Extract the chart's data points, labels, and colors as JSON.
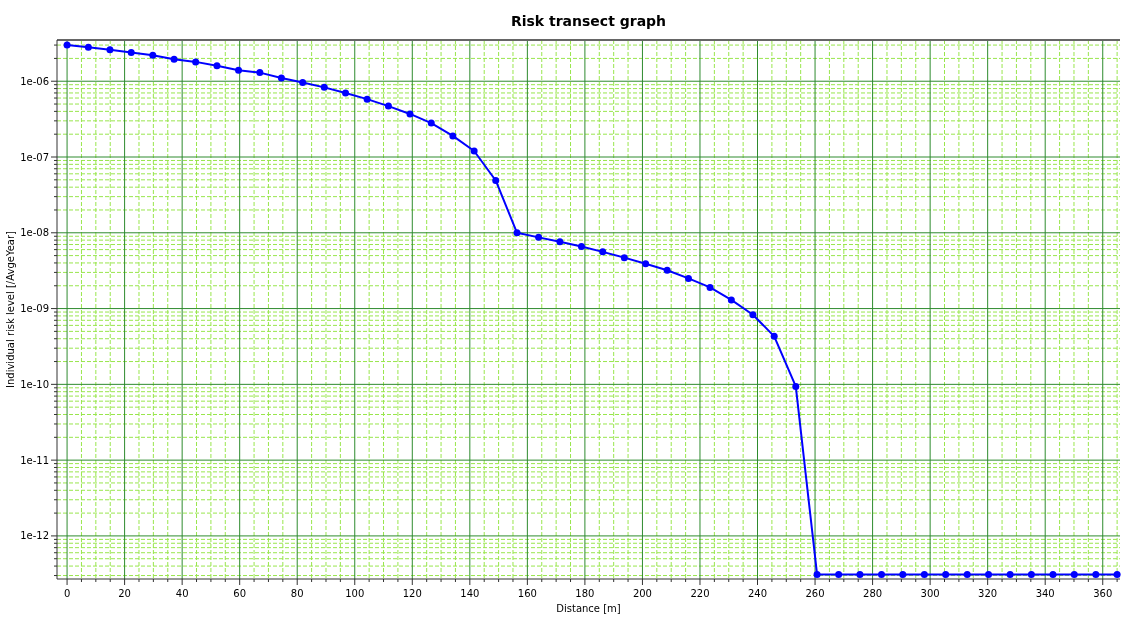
{
  "chart_data": {
    "type": "line",
    "title": "Risk transect graph",
    "xlabel": "Distance [m]",
    "ylabel": "Individual risk level [/AvgeYear]",
    "x": [
      0,
      7.4,
      14.9,
      22.3,
      29.8,
      37.2,
      44.7,
      52.1,
      59.6,
      67,
      74.5,
      81.9,
      89.4,
      96.8,
      104.3,
      111.7,
      119.2,
      126.6,
      134.1,
      141.5,
      149,
      156.4,
      163.9,
      171.3,
      178.8,
      186.2,
      193.7,
      201.1,
      208.6,
      216,
      223.5,
      230.9,
      238.4,
      245.8,
      253.3,
      260.7,
      268.2,
      275.6,
      283.1,
      290.5,
      298,
      305.4,
      312.9,
      320.3,
      327.8,
      335.2,
      342.7,
      350.1,
      357.6,
      365
    ],
    "series": [
      {
        "color": "#0000ff",
        "values": [
          3e-06,
          2.8e-06,
          2.6e-06,
          2.4e-06,
          2.2e-06,
          1.95e-06,
          1.8e-06,
          1.6e-06,
          1.4e-06,
          1.3e-06,
          1.1e-06,
          9.6e-07,
          8.3e-07,
          7e-07,
          5.8e-07,
          4.7e-07,
          3.7e-07,
          2.8e-07,
          1.9e-07,
          1.2e-07,
          4.9e-08,
          1e-08,
          8.7e-09,
          7.6e-09,
          6.6e-09,
          5.6e-09,
          4.7e-09,
          3.9e-09,
          3.2e-09,
          2.5e-09,
          1.9e-09,
          1.3e-09,
          8.3e-10,
          4.3e-10,
          9.4e-11,
          3.1e-13,
          3.1e-13,
          3.1e-13,
          3.1e-13,
          3.1e-13,
          3.1e-13,
          3.1e-13,
          3.1e-13,
          3.1e-13,
          3.1e-13,
          3.1e-13,
          3.1e-13,
          3.1e-13,
          3.1e-13,
          3.1e-13
        ]
      }
    ],
    "xlim": [
      -3.5,
      366
    ],
    "xticks": [
      0,
      {
        "value": 5,
        "label": null
      },
      {
        "value": 10,
        "label": null
      },
      {
        "value": 15,
        "label": null
      },
      20,
      {
        "value": 25,
        "label": null
      },
      {
        "value": 30,
        "label": null
      },
      {
        "value": 35,
        "label": null
      },
      40,
      {
        "value": 45,
        "label": null
      },
      {
        "value": 50,
        "label": null
      },
      {
        "value": 55,
        "label": null
      },
      60,
      {
        "value": 65,
        "label": null
      },
      {
        "value": 70,
        "label": null
      },
      {
        "value": 75,
        "label": null
      },
      80,
      {
        "value": 85,
        "label": null
      },
      {
        "value": 90,
        "label": null
      },
      {
        "value": 95,
        "label": null
      },
      100,
      {
        "value": 105,
        "label": null
      },
      {
        "value": 110,
        "label": null
      },
      {
        "value": 115,
        "label": null
      },
      120,
      {
        "value": 125,
        "label": null
      },
      {
        "value": 130,
        "label": null
      },
      {
        "value": 135,
        "label": null
      },
      140,
      {
        "value": 145,
        "label": null
      },
      {
        "value": 150,
        "label": null
      },
      {
        "value": 155,
        "label": null
      },
      160,
      {
        "value": 165,
        "label": null
      },
      {
        "value": 170,
        "label": null
      },
      {
        "value": 175,
        "label": null
      },
      180,
      {
        "value": 185,
        "label": null
      },
      {
        "value": 190,
        "label": null
      },
      {
        "value": 195,
        "label": null
      },
      200,
      {
        "value": 205,
        "label": null
      },
      {
        "value": 210,
        "label": null
      },
      {
        "value": 215,
        "label": null
      },
      220,
      {
        "value": 225,
        "label": null
      },
      {
        "value": 230,
        "label": null
      },
      {
        "value": 235,
        "label": null
      },
      240,
      {
        "value": 245,
        "label": null
      },
      {
        "value": 250,
        "label": null
      },
      {
        "value": 255,
        "label": null
      },
      260,
      {
        "value": 265,
        "label": null
      },
      {
        "value": 270,
        "label": null
      },
      {
        "value": 275,
        "label": null
      },
      280,
      {
        "value": 285,
        "label": null
      },
      {
        "value": 290,
        "label": null
      },
      {
        "value": 295,
        "label": null
      },
      300,
      {
        "value": 305,
        "label": null
      },
      {
        "value": 310,
        "label": null
      },
      {
        "value": 315,
        "label": null
      },
      320,
      {
        "value": 325,
        "label": null
      },
      {
        "value": 330,
        "label": null
      },
      {
        "value": 335,
        "label": null
      },
      340,
      {
        "value": 345,
        "label": null
      },
      {
        "value": 350,
        "label": null
      },
      {
        "value": 355,
        "label": null
      },
      360,
      {
        "value": 365,
        "label": null
      }
    ],
    "ylim": [
      2.7e-13,
      3.5e-06
    ],
    "yticks": [
      {
        "value": 3e-13,
        "label": null
      },
      {
        "value": 4e-13,
        "label": null
      },
      {
        "value": 5e-13,
        "label": null
      },
      {
        "value": 6e-13,
        "label": null
      },
      {
        "value": 7e-13,
        "label": null
      },
      {
        "value": 8e-13,
        "label": null
      },
      {
        "value": 9e-13,
        "label": null
      },
      {
        "value": 1e-12,
        "label": "1e-12"
      },
      {
        "value": 2e-12,
        "label": null
      },
      {
        "value": 3e-12,
        "label": null
      },
      {
        "value": 4e-12,
        "label": null
      },
      {
        "value": 5e-12,
        "label": null
      },
      {
        "value": 6e-12,
        "label": null
      },
      {
        "value": 7e-12,
        "label": null
      },
      {
        "value": 8e-12,
        "label": null
      },
      {
        "value": 9e-12,
        "label": null
      },
      {
        "value": 1e-11,
        "label": "1e-11"
      },
      {
        "value": 2e-11,
        "label": null
      },
      {
        "value": 3e-11,
        "label": null
      },
      {
        "value": 4e-11,
        "label": null
      },
      {
        "value": 5e-11,
        "label": null
      },
      {
        "value": 6e-11,
        "label": null
      },
      {
        "value": 7e-11,
        "label": null
      },
      {
        "value": 8e-11,
        "label": null
      },
      {
        "value": 9e-11,
        "label": null
      },
      {
        "value": 1e-10,
        "label": "1e-10"
      },
      {
        "value": 2e-10,
        "label": null
      },
      {
        "value": 3e-10,
        "label": null
      },
      {
        "value": 4e-10,
        "label": null
      },
      {
        "value": 5e-10,
        "label": null
      },
      {
        "value": 6e-10,
        "label": null
      },
      {
        "value": 7e-10,
        "label": null
      },
      {
        "value": 8e-10,
        "label": null
      },
      {
        "value": 9e-10,
        "label": null
      },
      {
        "value": 1e-09,
        "label": "1e-09"
      },
      {
        "value": 2e-09,
        "label": null
      },
      {
        "value": 3e-09,
        "label": null
      },
      {
        "value": 4e-09,
        "label": null
      },
      {
        "value": 5e-09,
        "label": null
      },
      {
        "value": 6e-09,
        "label": null
      },
      {
        "value": 7e-09,
        "label": null
      },
      {
        "value": 8e-09,
        "label": null
      },
      {
        "value": 9e-09,
        "label": null
      },
      {
        "value": 1e-08,
        "label": "1e-08"
      },
      {
        "value": 2e-08,
        "label": null
      },
      {
        "value": 3e-08,
        "label": null
      },
      {
        "value": 4e-08,
        "label": null
      },
      {
        "value": 5e-08,
        "label": null
      },
      {
        "value": 6e-08,
        "label": null
      },
      {
        "value": 7e-08,
        "label": null
      },
      {
        "value": 8e-08,
        "label": null
      },
      {
        "value": 9e-08,
        "label": null
      },
      {
        "value": 1e-07,
        "label": "1e-07"
      },
      {
        "value": 2e-07,
        "label": null
      },
      {
        "value": 3e-07,
        "label": null
      },
      {
        "value": 4e-07,
        "label": null
      },
      {
        "value": 5e-07,
        "label": null
      },
      {
        "value": 6e-07,
        "label": null
      },
      {
        "value": 7e-07,
        "label": null
      },
      {
        "value": 8e-07,
        "label": null
      },
      {
        "value": 9e-07,
        "label": null
      },
      {
        "value": 1e-06,
        "label": "1e-06"
      },
      {
        "value": 2e-06,
        "label": null
      },
      {
        "value": 3e-06,
        "label": null
      }
    ],
    "log": "y",
    "grid": true,
    "marker": "circle",
    "line_style": "solid"
  }
}
